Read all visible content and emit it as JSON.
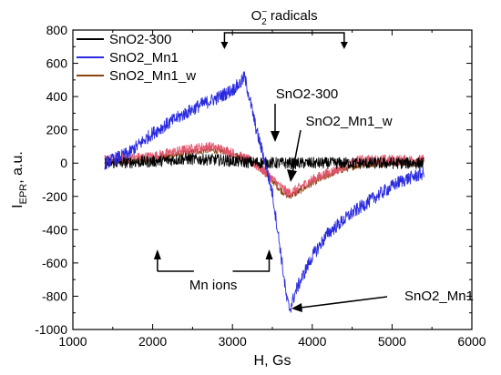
{
  "chart_data": {
    "type": "line",
    "xlabel": "H, Gs",
    "ylabel": {
      "main": "I",
      "sub": "EPR",
      "rest": ", a.u."
    },
    "xlim": [
      1000,
      6000
    ],
    "ylim": [
      -1000,
      800
    ],
    "x_ticks": [
      1000,
      2000,
      3000,
      4000,
      5000,
      6000
    ],
    "y_ticks": [
      -1000,
      -800,
      -600,
      -400,
      -200,
      0,
      200,
      400,
      600,
      800
    ],
    "grid": false,
    "legend_position": "top-left",
    "series": [
      {
        "name": "SnO2-300",
        "color": "#000000",
        "noise": 35,
        "points": [
          [
            1400,
            0
          ],
          [
            2000,
            10
          ],
          [
            2400,
            25
          ],
          [
            2800,
            20
          ],
          [
            3200,
            5
          ],
          [
            3600,
            0
          ],
          [
            4000,
            0
          ],
          [
            4400,
            0
          ],
          [
            4800,
            0
          ],
          [
            5400,
            0
          ]
        ]
      },
      {
        "name": "SnO2_Mn1",
        "color": "#2a2adf",
        "noise": 40,
        "points": [
          [
            1400,
            0
          ],
          [
            1700,
            60
          ],
          [
            2000,
            180
          ],
          [
            2300,
            270
          ],
          [
            2600,
            350
          ],
          [
            2800,
            390
          ],
          [
            3000,
            440
          ],
          [
            3100,
            480
          ],
          [
            3150,
            520
          ],
          [
            3200,
            420
          ],
          [
            3300,
            200
          ],
          [
            3400,
            20
          ],
          [
            3500,
            -180
          ],
          [
            3600,
            -520
          ],
          [
            3680,
            -820
          ],
          [
            3720,
            -880
          ],
          [
            3800,
            -760
          ],
          [
            4000,
            -560
          ],
          [
            4200,
            -420
          ],
          [
            4500,
            -300
          ],
          [
            4800,
            -200
          ],
          [
            5100,
            -110
          ],
          [
            5400,
            -60
          ]
        ]
      },
      {
        "name": "SnO2_Mn1_w",
        "color": "#8b4513",
        "noise": 20,
        "points": [
          [
            1400,
            0
          ],
          [
            2000,
            20
          ],
          [
            2400,
            60
          ],
          [
            2700,
            80
          ],
          [
            2900,
            70
          ],
          [
            3200,
            20
          ],
          [
            3400,
            -50
          ],
          [
            3600,
            -160
          ],
          [
            3700,
            -200
          ],
          [
            3800,
            -180
          ],
          [
            4000,
            -120
          ],
          [
            4300,
            -50
          ],
          [
            4600,
            -10
          ],
          [
            5000,
            0
          ],
          [
            5400,
            0
          ]
        ]
      },
      {
        "name": "",
        "color": "#e0556b",
        "noise": 30,
        "points": [
          [
            1400,
            20
          ],
          [
            2000,
            40
          ],
          [
            2400,
            80
          ],
          [
            2700,
            100
          ],
          [
            2900,
            80
          ],
          [
            3200,
            20
          ],
          [
            3400,
            -50
          ],
          [
            3600,
            -140
          ],
          [
            3700,
            -180
          ],
          [
            3800,
            -160
          ],
          [
            4000,
            -100
          ],
          [
            4300,
            -40
          ],
          [
            4600,
            20
          ],
          [
            5000,
            20
          ],
          [
            5400,
            20
          ]
        ]
      }
    ],
    "annotations": [
      {
        "id": "o2",
        "base": "O",
        "sup": "−",
        "sub": "2",
        "rest": " radicals"
      },
      {
        "id": "sno2-300",
        "text": "SnO2-300"
      },
      {
        "id": "mn1w",
        "text": "SnO2_Mn1_w"
      },
      {
        "id": "mn-ions",
        "text": "Mn ions"
      },
      {
        "id": "mn1",
        "text": "SnO2_Mn1"
      }
    ]
  }
}
